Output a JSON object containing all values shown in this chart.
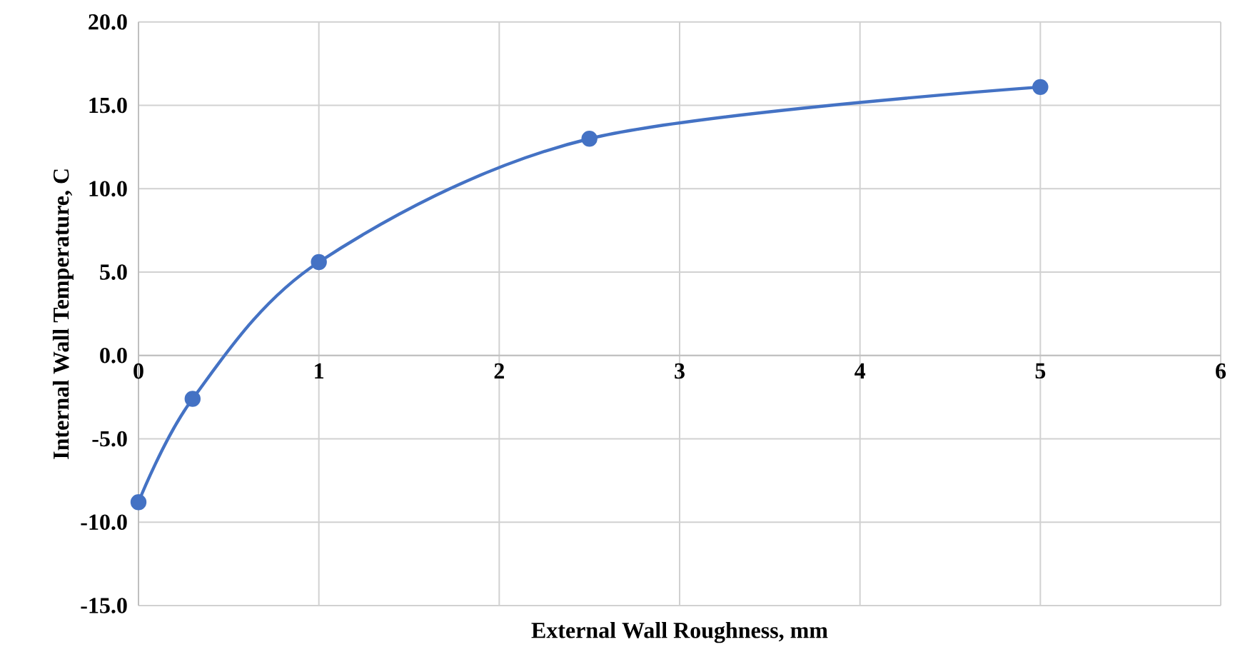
{
  "chart_data": {
    "type": "line",
    "xlabel": "External Wall Roughness, mm",
    "ylabel": "Internal Wall Temperature, C",
    "x": [
      0,
      0.3,
      1,
      2.5,
      5
    ],
    "series": [
      {
        "color": "#4472c4",
        "values": [
          -8.8,
          -2.6,
          5.6,
          13.0,
          16.1
        ]
      }
    ],
    "xlim": [
      0,
      6
    ],
    "xticks": [
      0,
      1,
      2,
      3,
      4,
      5,
      6
    ],
    "ylim": [
      -15,
      20
    ],
    "yticks": [
      {
        "value": -15,
        "label": "-15.0"
      },
      {
        "value": -10,
        "label": "-10.0"
      },
      {
        "value": -5,
        "label": "-5.0"
      },
      {
        "value": 0,
        "label": "0.0"
      },
      {
        "value": 5,
        "label": "5.0"
      },
      {
        "value": 10,
        "label": "10.0"
      },
      {
        "value": 15,
        "label": "15.0"
      },
      {
        "value": 20,
        "label": "20.0"
      }
    ],
    "grid": true,
    "marker": "circle",
    "line_style": "solid"
  }
}
